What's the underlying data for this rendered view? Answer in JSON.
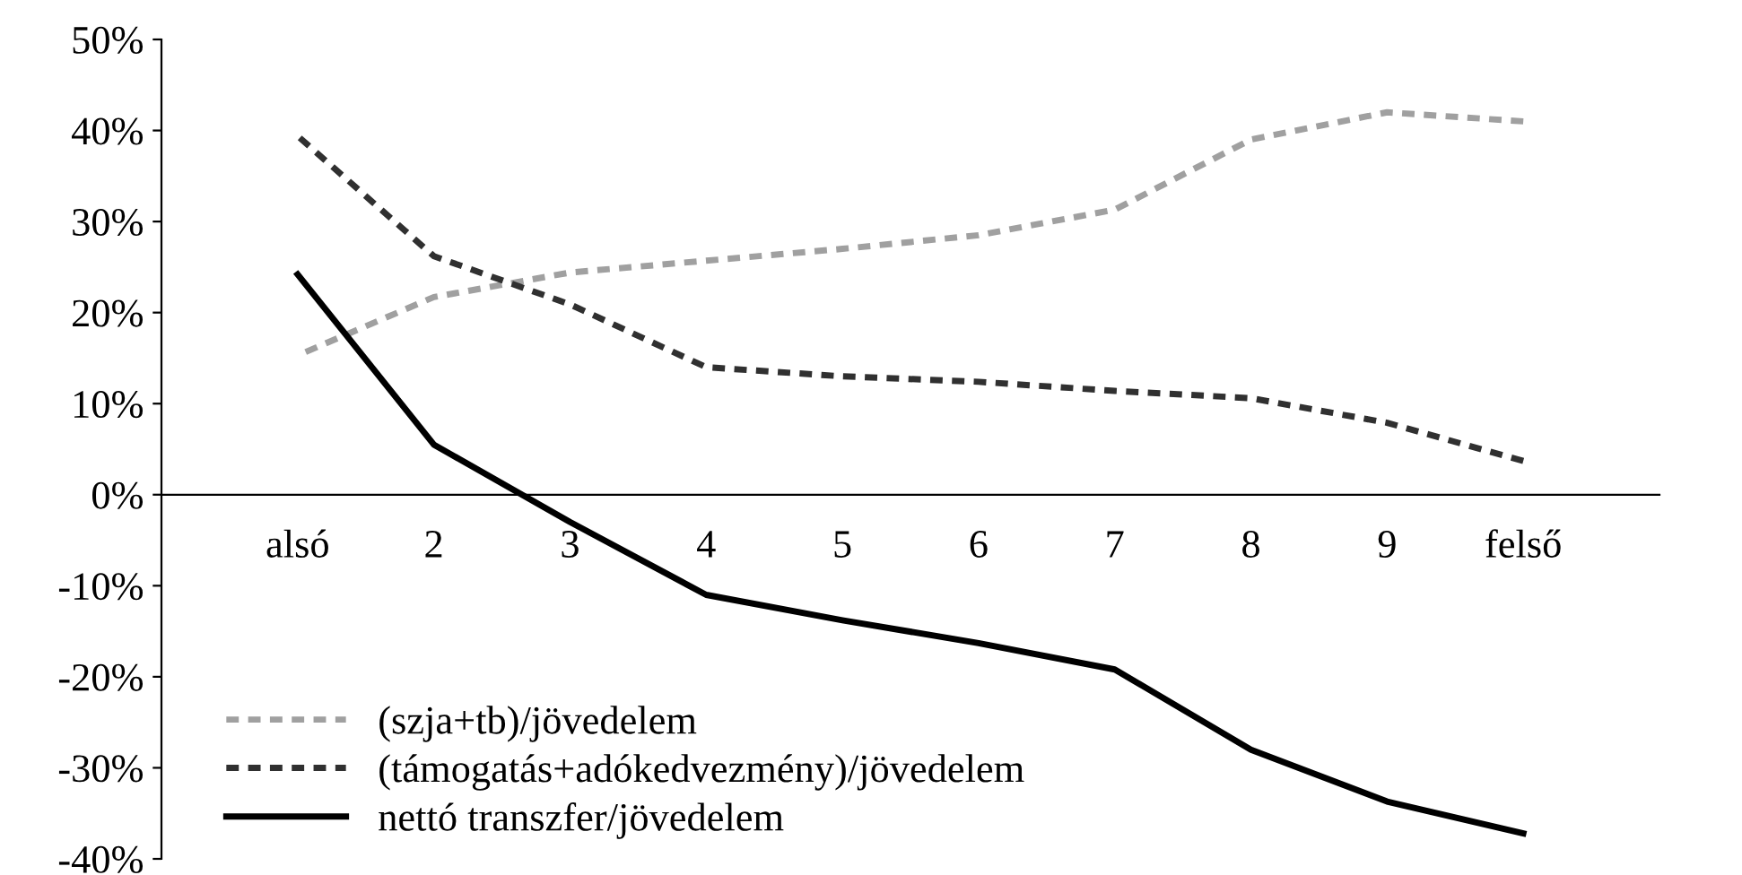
{
  "chart_data": {
    "type": "line",
    "categories": [
      "alsó",
      "2",
      "3",
      "4",
      "5",
      "6",
      "7",
      "8",
      "9",
      "felső"
    ],
    "series": [
      {
        "name": "(szja+tb)/jövedelem",
        "color": "#a0a0a0",
        "line_style": "dashed",
        "values": [
          15.3,
          21.7,
          24.4,
          25.7,
          27,
          28.5,
          31.3,
          39,
          42,
          41
        ]
      },
      {
        "name": "(támogatás+adókedvezmény)/jövedelem",
        "color": "#303030",
        "line_style": "dashed",
        "values": [
          39.4,
          26.2,
          20.9,
          14,
          13,
          12.4,
          11.4,
          10.6,
          7.9,
          3.7
        ]
      },
      {
        "name": "nettó transzfer/jövedelem",
        "color": "#000000",
        "line_style": "solid",
        "values": [
          24.2,
          5.5,
          -3,
          -11,
          -13.8,
          -16.3,
          -19.2,
          -28,
          -33.7,
          -37.2
        ]
      }
    ],
    "ylim": [
      -40,
      50
    ],
    "yticks": [
      {
        "value": -40,
        "label": "-40%"
      },
      {
        "value": -30,
        "label": "-30%"
      },
      {
        "value": -20,
        "label": "-20%"
      },
      {
        "value": -10,
        "label": "-10%"
      },
      {
        "value": 0,
        "label": "0%"
      },
      {
        "value": 10,
        "label": "10%"
      },
      {
        "value": 20,
        "label": "20%"
      },
      {
        "value": 30,
        "label": "30%"
      },
      {
        "value": 40,
        "label": "40%"
      },
      {
        "value": 50,
        "label": "50%"
      }
    ],
    "grid": false,
    "legend": "bottom left",
    "marker": "none"
  }
}
